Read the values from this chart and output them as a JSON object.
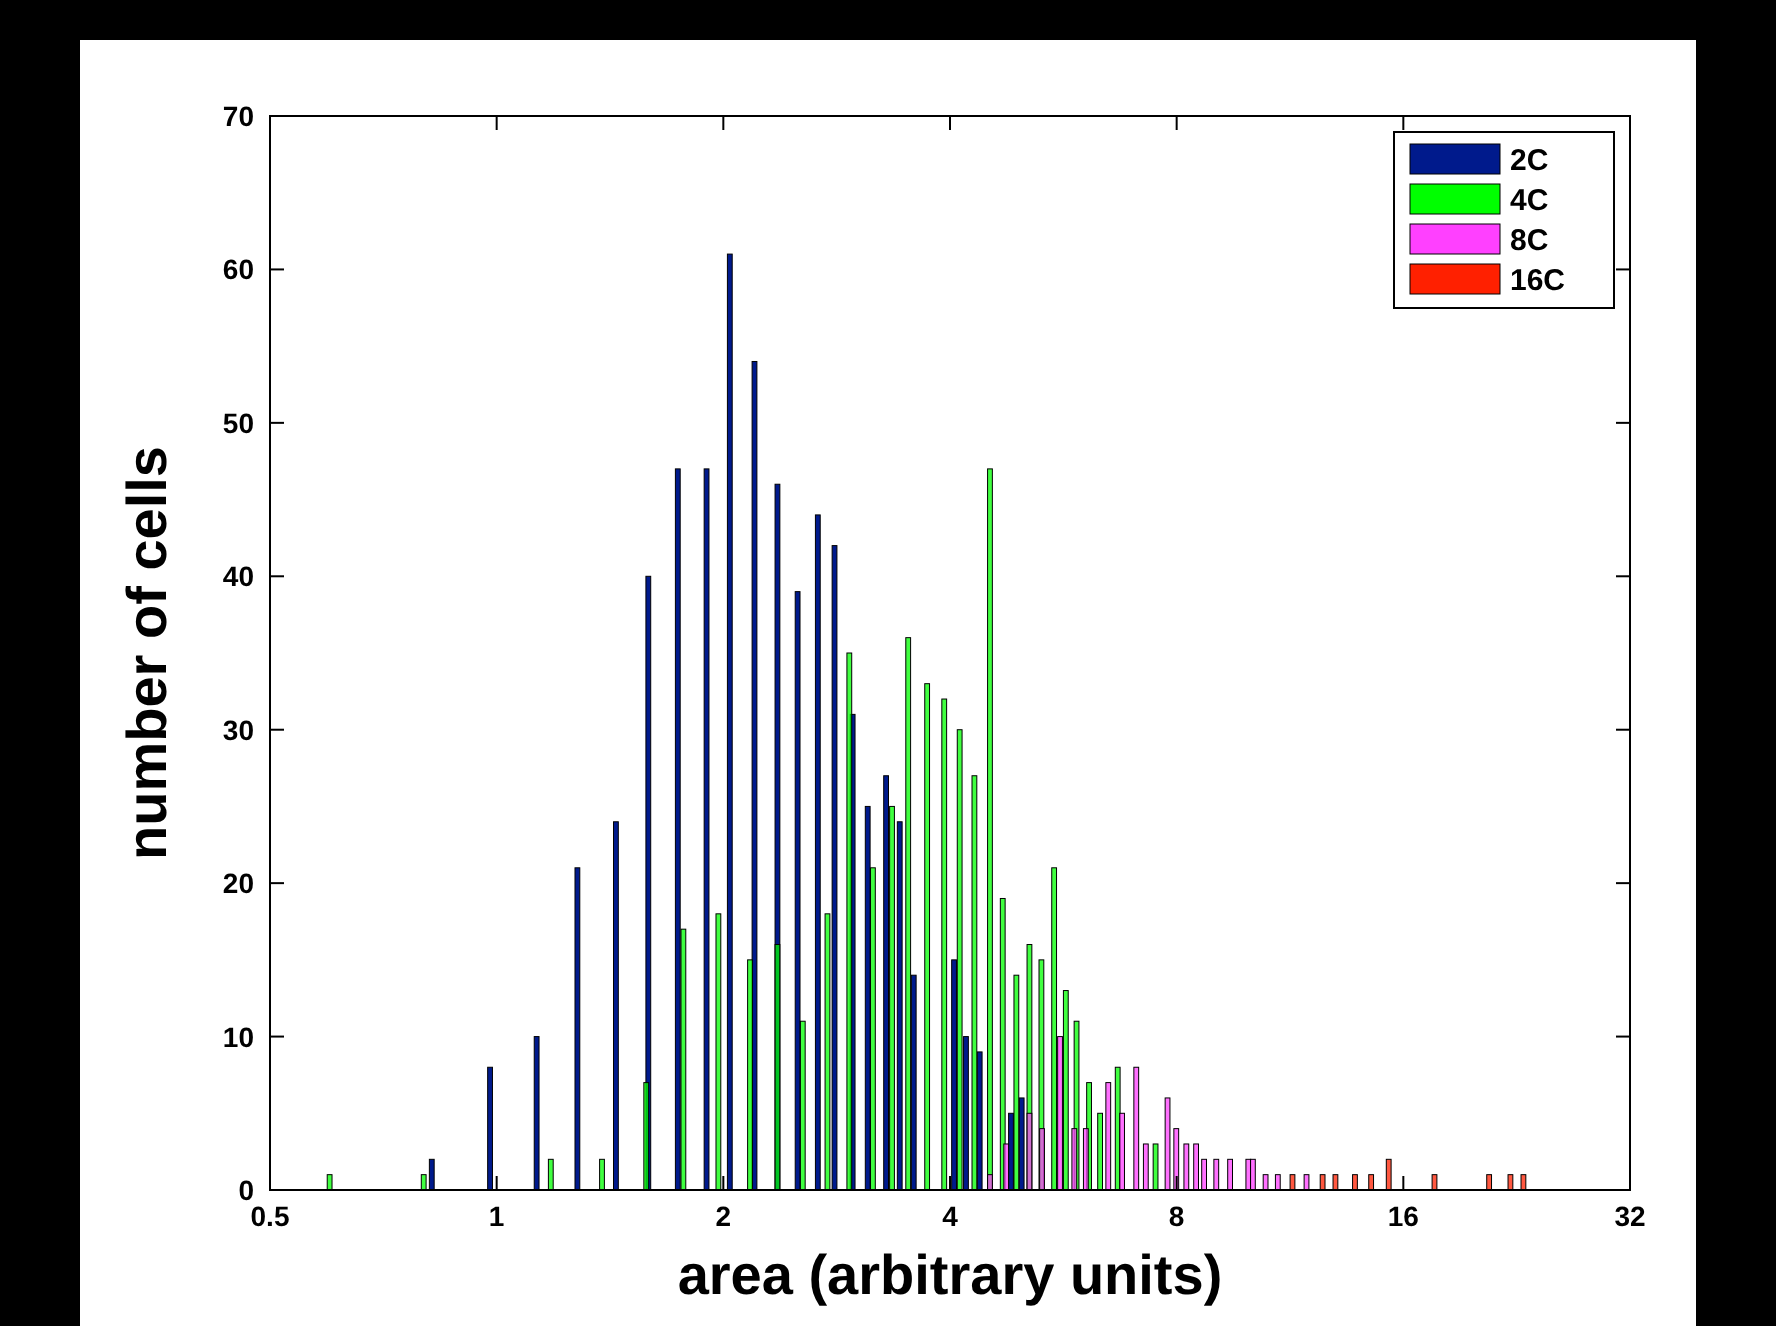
{
  "chart_data": {
    "type": "bar",
    "xlabel": "area (arbitrary units)",
    "ylabel": "number of cells",
    "log": "x",
    "xlim": [
      0.5,
      32
    ],
    "xticks": [
      0.5,
      1,
      2,
      4,
      8,
      16,
      32
    ],
    "ylim": [
      0,
      70
    ],
    "yticks": [
      0,
      10,
      20,
      30,
      40,
      50,
      60,
      70
    ],
    "grid": false,
    "legend": "top right",
    "series": [
      {
        "name": "2C",
        "color": "#001a8c",
        "x": [
          0.82,
          0.98,
          1.13,
          1.28,
          1.44,
          1.59,
          1.74,
          1.9,
          2.04,
          2.2,
          2.36,
          2.51,
          2.67,
          2.81,
          2.97,
          3.11,
          3.29,
          3.43,
          3.58,
          4.05,
          4.2,
          4.38,
          4.82,
          4.98
        ],
        "values": [
          2,
          8,
          10,
          21,
          24,
          40,
          47,
          47,
          61,
          54,
          46,
          39,
          44,
          42,
          31,
          25,
          27,
          24,
          14,
          15,
          10,
          9,
          5,
          6
        ]
      },
      {
        "name": "4C",
        "color": "#00ff00",
        "x": [
          0.6,
          0.8,
          1.18,
          1.38,
          1.58,
          1.77,
          1.97,
          2.17,
          2.36,
          2.55,
          2.75,
          2.94,
          3.16,
          3.35,
          3.52,
          3.73,
          3.93,
          4.12,
          4.31,
          4.52,
          4.7,
          4.9,
          5.1,
          5.29,
          5.5,
          5.7,
          5.89,
          6.12,
          6.33,
          6.68,
          7.5
        ],
        "values": [
          1,
          1,
          2,
          2,
          7,
          17,
          18,
          15,
          16,
          11,
          18,
          35,
          21,
          25,
          36,
          33,
          32,
          30,
          27,
          47,
          19,
          14,
          16,
          15,
          21,
          13,
          11,
          7,
          5,
          8,
          3
        ]
      },
      {
        "name": "8C",
        "color": "#ff40ff",
        "x": [
          4.52,
          4.75,
          5.1,
          5.3,
          5.6,
          5.85,
          6.06,
          6.49,
          6.77,
          7.07,
          7.28,
          7.78,
          7.99,
          8.24,
          8.49,
          8.7,
          9.03,
          9.42,
          9.96,
          10.1,
          10.5,
          10.9,
          11.9
        ],
        "values": [
          1,
          3,
          5,
          4,
          10,
          4,
          4,
          7,
          5,
          8,
          3,
          6,
          4,
          3,
          3,
          2,
          2,
          2,
          2,
          2,
          1,
          1,
          1
        ]
      },
      {
        "name": "16C",
        "color": "#ff2000",
        "x": [
          11.4,
          12.5,
          13,
          13.8,
          14.5,
          15.3,
          17.6,
          20.8,
          22.2,
          23.1
        ],
        "values": [
          1,
          1,
          1,
          1,
          1,
          2,
          1,
          1,
          1,
          1
        ]
      }
    ]
  }
}
